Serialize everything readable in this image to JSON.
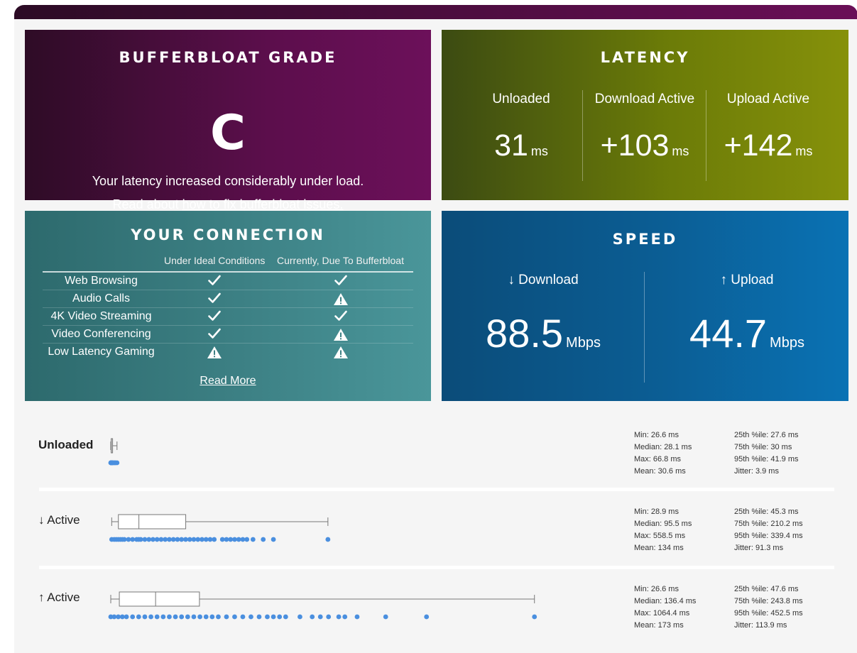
{
  "grade": {
    "title": "BUFFERBLOAT GRADE",
    "letter": "C",
    "description": "Your latency increased considerably under load.",
    "fix_prefix": "Read about",
    "fix_link": "how to fix bufferbloat issues."
  },
  "latency": {
    "title": "LATENCY",
    "columns": [
      {
        "label": "Unloaded",
        "value": "31",
        "unit": "ms"
      },
      {
        "label": "Download Active",
        "value": "+103",
        "unit": "ms"
      },
      {
        "label": "Upload Active",
        "value": "+142",
        "unit": "ms"
      }
    ]
  },
  "connection": {
    "title": "YOUR CONNECTION",
    "col_ideal": "Under Ideal Conditions",
    "col_current": "Currently, Due To Bufferbloat",
    "rows": [
      {
        "name": "Web Browsing",
        "ideal": "check",
        "current": "check"
      },
      {
        "name": "Audio Calls",
        "ideal": "check",
        "current": "warning"
      },
      {
        "name": "4K Video Streaming",
        "ideal": "check",
        "current": "check"
      },
      {
        "name": "Video Conferencing",
        "ideal": "check",
        "current": "warning"
      },
      {
        "name": "Low Latency Gaming",
        "ideal": "warning",
        "current": "warning"
      }
    ],
    "read_more": "Read More"
  },
  "speed": {
    "title": "SPEED",
    "download": {
      "label": "↓ Download",
      "value": "88.5",
      "unit": "Mbps"
    },
    "upload": {
      "label": "↑ Upload",
      "value": "44.7",
      "unit": "Mbps"
    }
  },
  "latency_details": [
    {
      "label": "Unloaded",
      "stats_left": [
        "Min: 26.6 ms",
        "Median: 28.1 ms",
        "Max: 66.8 ms",
        "Mean: 30.6 ms"
      ],
      "stats_right": [
        "25th %ile: 27.6 ms",
        "75th %ile: 30 ms",
        "95th %ile: 41.9 ms",
        "Jitter: 3.9 ms"
      ],
      "box": {
        "min": 26.6,
        "q1": 27.6,
        "median": 28.1,
        "q3": 30,
        "max": 41.9
      },
      "points": [
        26.6,
        27,
        27.5,
        28,
        28.1,
        28.5,
        29,
        30,
        31,
        33,
        36,
        38,
        41.9
      ]
    },
    {
      "label": "↓ Active",
      "stats_left": [
        "Min: 28.9 ms",
        "Median: 95.5 ms",
        "Max: 558.5 ms",
        "Mean: 134 ms"
      ],
      "stats_right": [
        "25th %ile: 45.3 ms",
        "75th %ile: 210.2 ms",
        "95th %ile: 339.4 ms",
        "Jitter: 91.3 ms"
      ],
      "box": {
        "min": 28.9,
        "q1": 45.3,
        "median": 95.5,
        "q3": 210.2,
        "max": 558.5
      },
      "points": [
        28.9,
        35,
        40,
        45,
        50,
        55,
        60,
        70,
        80,
        90,
        95,
        100,
        110,
        120,
        130,
        140,
        150,
        160,
        170,
        180,
        190,
        200,
        210,
        220,
        230,
        240,
        250,
        260,
        270,
        280,
        300,
        310,
        320,
        330,
        340,
        350,
        360,
        375,
        400,
        425,
        558.5
      ]
    },
    {
      "label": "↑ Active",
      "stats_left": [
        "Min: 26.6 ms",
        "Median: 136.4 ms",
        "Max: 1064.4 ms",
        "Mean: 173 ms"
      ],
      "stats_right": [
        "25th %ile: 47.6 ms",
        "75th %ile: 243.8 ms",
        "95th %ile: 452.5 ms",
        "Jitter: 113.9 ms"
      ],
      "box": {
        "min": 26.6,
        "q1": 47.6,
        "median": 136.4,
        "q3": 243.8,
        "max": 1064.4
      },
      "points": [
        26.6,
        35,
        45,
        55,
        65,
        80,
        95,
        110,
        125,
        140,
        155,
        170,
        185,
        200,
        215,
        230,
        245,
        260,
        275,
        290,
        310,
        330,
        350,
        370,
        390,
        410,
        425,
        440,
        455,
        490,
        520,
        540,
        560,
        585,
        600,
        630,
        700,
        800,
        1064.4
      ]
    }
  ]
}
